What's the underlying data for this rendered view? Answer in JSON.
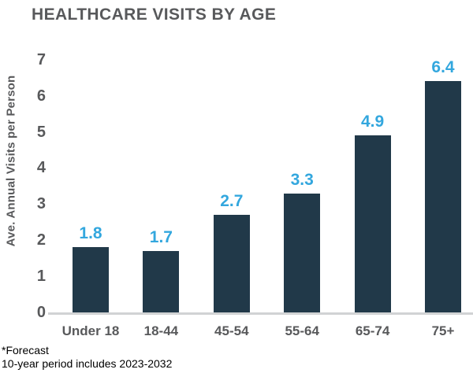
{
  "title": "HEALTHCARE VISITS BY AGE",
  "footnotes": {
    "line1": "*Forecast",
    "line2": "10-year period includes 2023-2032"
  },
  "chart_data": {
    "type": "bar",
    "title": "HEALTHCARE VISITS BY AGE",
    "categories": [
      "Under 18",
      "18-44",
      "45-54",
      "55-64",
      "65-74",
      "75+"
    ],
    "values": [
      1.8,
      1.7,
      2.7,
      3.3,
      4.9,
      6.4
    ],
    "data_labels": [
      "1.8",
      "1.7",
      "2.7",
      "3.3",
      "4.9",
      "6.4"
    ],
    "xlabel": "",
    "ylabel": "Ave. Annual Visits per Person",
    "ylim": [
      0,
      7
    ],
    "yticks": [
      0,
      1,
      2,
      3,
      4,
      5,
      6,
      7
    ],
    "grid": false,
    "legend": false,
    "annotations": [
      "*Forecast",
      "10-year period includes 2023-2032"
    ],
    "colors": {
      "bar": "#213949",
      "value_label": "#33A7DE",
      "axis_text": "#58595B",
      "baseline": "#D1D3D4",
      "footnote": "#000000",
      "background": "#FFFFFF"
    }
  }
}
